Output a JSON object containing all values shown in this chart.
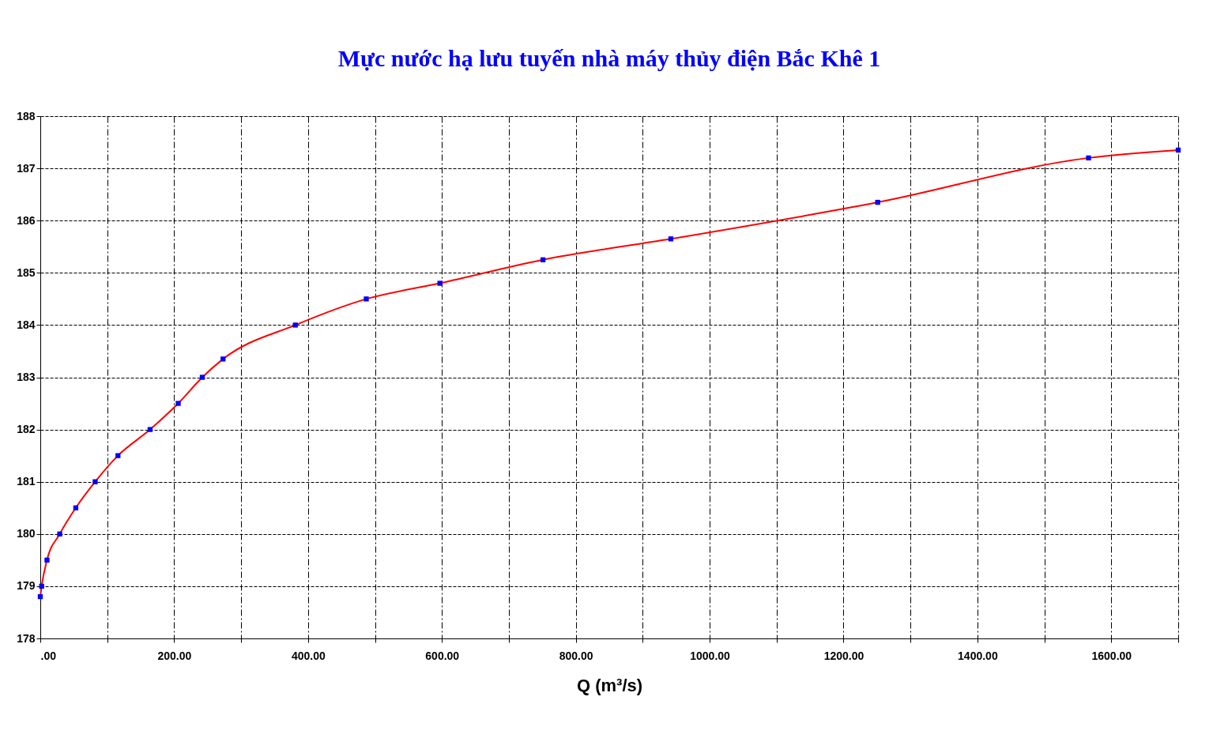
{
  "chart_data": {
    "type": "line",
    "title": "Mực nước hạ lưu tuyến nhà máy thủy điện Bắc Khê 1",
    "xlabel": "Q (m³/s)",
    "x": [
      0,
      2,
      10,
      29,
      53,
      82,
      116,
      164,
      206,
      242,
      273,
      381,
      487,
      597,
      751,
      942,
      1251,
      1566,
      1700
    ],
    "series": [
      {
        "color": "#ff0000",
        "marker": "none",
        "values": [
          178.8,
          179.0,
          179.5,
          180.0,
          180.5,
          181.0,
          181.5,
          182.0,
          182.5,
          183.0,
          183.35,
          184.0,
          184.5,
          184.8,
          185.25,
          185.65,
          186.35,
          187.2,
          187.35
        ]
      },
      {
        "type": "scatter",
        "color": "#0000ff",
        "marker": "square",
        "values": [
          178.8,
          179.0,
          179.5,
          180.0,
          180.5,
          181.0,
          181.5,
          182.0,
          182.5,
          183.0,
          183.35,
          184.0,
          184.5,
          184.8,
          185.25,
          185.65,
          186.35,
          187.2,
          187.35
        ]
      }
    ],
    "xlim": [
      0,
      1700
    ],
    "ylim": [
      178,
      188
    ],
    "xticks": [
      {
        "value": 0,
        "label": ".00"
      },
      {
        "value": 100,
        "label": null
      },
      {
        "value": 200,
        "label": "200.00"
      },
      {
        "value": 300,
        "label": null
      },
      {
        "value": 400,
        "label": "400.00"
      },
      {
        "value": 500,
        "label": null
      },
      {
        "value": 600,
        "label": "600.00"
      },
      {
        "value": 700,
        "label": null
      },
      {
        "value": 800,
        "label": "800.00"
      },
      {
        "value": 900,
        "label": null
      },
      {
        "value": 1000,
        "label": "1000.00"
      },
      {
        "value": 1100,
        "label": null
      },
      {
        "value": 1200,
        "label": "1200.00"
      },
      {
        "value": 1300,
        "label": null
      },
      {
        "value": 1400,
        "label": "1400.00"
      },
      {
        "value": 1500,
        "label": null
      },
      {
        "value": 1600,
        "label": "1600.00"
      },
      {
        "value": 1700,
        "label": null
      }
    ],
    "yticks": [
      178,
      179,
      180,
      181,
      182,
      183,
      184,
      185,
      186,
      187,
      188
    ],
    "grid": true,
    "line_style": "solid"
  }
}
